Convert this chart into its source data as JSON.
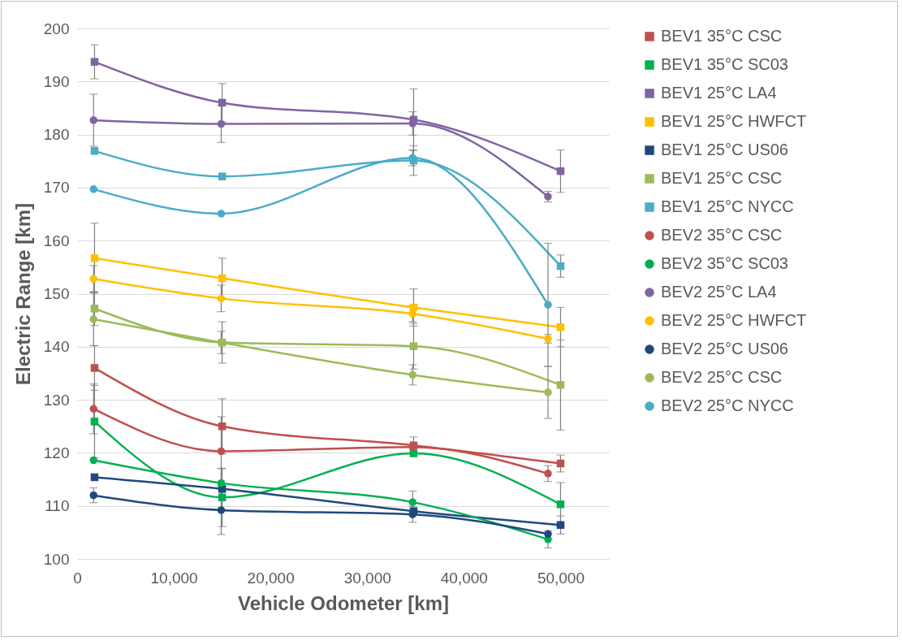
{
  "chart_data": {
    "type": "line",
    "xlabel": "Vehicle Odometer [km]",
    "ylabel": "Electric Range [km]",
    "xlim": [
      0,
      55000
    ],
    "xticks": [
      0,
      {
        "value": 10000,
        "label": "10,000"
      },
      {
        "value": 20000,
        "label": "20,000"
      },
      {
        "value": 30000,
        "label": "30,000"
      },
      {
        "value": 40000,
        "label": "40,000"
      },
      {
        "value": 50000,
        "label": "50,000"
      }
    ],
    "ylim": [
      100,
      200
    ],
    "yticks": [
      100,
      110,
      120,
      130,
      140,
      150,
      160,
      170,
      180,
      190,
      200
    ],
    "grid": "y",
    "legend": "right",
    "line_style": "solid",
    "series": [
      {
        "name": "BEV1 35°C CSC",
        "color": "#c0504d",
        "marker": "square",
        "x": [
          1800,
          15000,
          34800,
          50000
        ],
        "values": [
          136.0,
          125.0,
          121.4,
          118.0
        ],
        "errors": [
          4.2,
          5.2,
          1.6,
          1.6
        ]
      },
      {
        "name": "BEV1 35°C SC03",
        "color": "#00b050",
        "marker": "square",
        "x": [
          1800,
          15000,
          34800,
          50000
        ],
        "values": [
          125.9,
          111.6,
          119.9,
          110.3
        ],
        "errors": [
          6.8,
          5.5,
          null,
          4.1
        ]
      },
      {
        "name": "BEV1 25°C LA4",
        "color": "#8064a2",
        "marker": "square",
        "x": [
          1800,
          15000,
          34800,
          50000
        ],
        "values": [
          193.7,
          186.0,
          182.8,
          173.1
        ],
        "errors": [
          3.2,
          3.6,
          5.8,
          4.0
        ]
      },
      {
        "name": "BEV1 25°C HWFCT",
        "color": "#ffc000",
        "marker": "square",
        "x": [
          1800,
          15000,
          34800,
          50000
        ],
        "values": [
          156.7,
          152.9,
          147.4,
          143.7
        ],
        "errors": [
          6.6,
          3.8,
          3.5,
          3.7
        ]
      },
      {
        "name": "BEV1 25°C US06",
        "color": "#1f497d",
        "marker": "square",
        "x": [
          1800,
          15000,
          34800,
          50000
        ],
        "values": [
          115.4,
          113.2,
          109.0,
          106.4
        ],
        "errors": [
          null,
          null,
          null,
          1.7
        ]
      },
      {
        "name": "BEV1 25°C CSC",
        "color": "#9bbb59",
        "marker": "square",
        "x": [
          1800,
          15000,
          34800,
          50000
        ],
        "values": [
          147.2,
          140.8,
          140.1,
          132.8
        ],
        "errors": [
          3.2,
          3.9,
          4.3,
          8.5
        ]
      },
      {
        "name": "BEV1 25°C NYCC",
        "color": "#4bacc6",
        "marker": "square",
        "x": [
          1800,
          15000,
          34800,
          50000
        ],
        "values": [
          176.9,
          172.1,
          175.1,
          155.2
        ],
        "errors": [
          null,
          null,
          2.8,
          2.1
        ]
      },
      {
        "name": "BEV2 35°C CSC",
        "color": "#c0504d",
        "marker": "circle",
        "x": [
          1700,
          14900,
          34700,
          48700
        ],
        "values": [
          128.3,
          120.3,
          121.1,
          116.1
        ],
        "errors": [
          4.7,
          6.5,
          null,
          1.5
        ]
      },
      {
        "name": "BEV2 35°C SC03",
        "color": "#00b050",
        "marker": "circle",
        "x": [
          1700,
          14900,
          34700,
          48700
        ],
        "values": [
          118.6,
          114.3,
          110.7,
          103.7
        ],
        "errors": [
          null,
          2.7,
          2.1,
          1.6
        ]
      },
      {
        "name": "BEV2 25°C LA4",
        "color": "#8064a2",
        "marker": "circle",
        "x": [
          1700,
          14900,
          34700,
          48700
        ],
        "values": [
          182.7,
          182.0,
          182.1,
          168.3
        ],
        "errors": [
          4.9,
          3.5,
          2.2,
          1.0
        ]
      },
      {
        "name": "BEV2 25°C HWFCT",
        "color": "#ffc000",
        "marker": "circle",
        "x": [
          1700,
          14900,
          34700,
          48700
        ],
        "values": [
          152.8,
          149.1,
          146.2,
          141.5
        ],
        "errors": [
          2.5,
          2.5,
          1.5,
          0.8
        ]
      },
      {
        "name": "BEV2 25°C US06",
        "color": "#1f497d",
        "marker": "circle",
        "x": [
          1700,
          14900,
          34700,
          48700
        ],
        "values": [
          112.0,
          109.2,
          108.4,
          104.7
        ],
        "errors": [
          1.4,
          4.6,
          1.5,
          null
        ]
      },
      {
        "name": "BEV2 25°C CSC",
        "color": "#9bbb59",
        "marker": "circle",
        "x": [
          1700,
          14900,
          34700,
          48700
        ],
        "values": [
          145.2,
          140.8,
          134.7,
          131.4
        ],
        "errors": [
          5.0,
          2.1,
          1.9,
          4.9
        ]
      },
      {
        "name": "BEV2 25°C NYCC",
        "color": "#4bacc6",
        "marker": "circle",
        "x": [
          1700,
          14900,
          34700,
          48700
        ],
        "values": [
          169.7,
          165.1,
          175.6,
          147.9
        ],
        "errors": [
          null,
          null,
          1.5,
          11.6
        ]
      }
    ]
  }
}
